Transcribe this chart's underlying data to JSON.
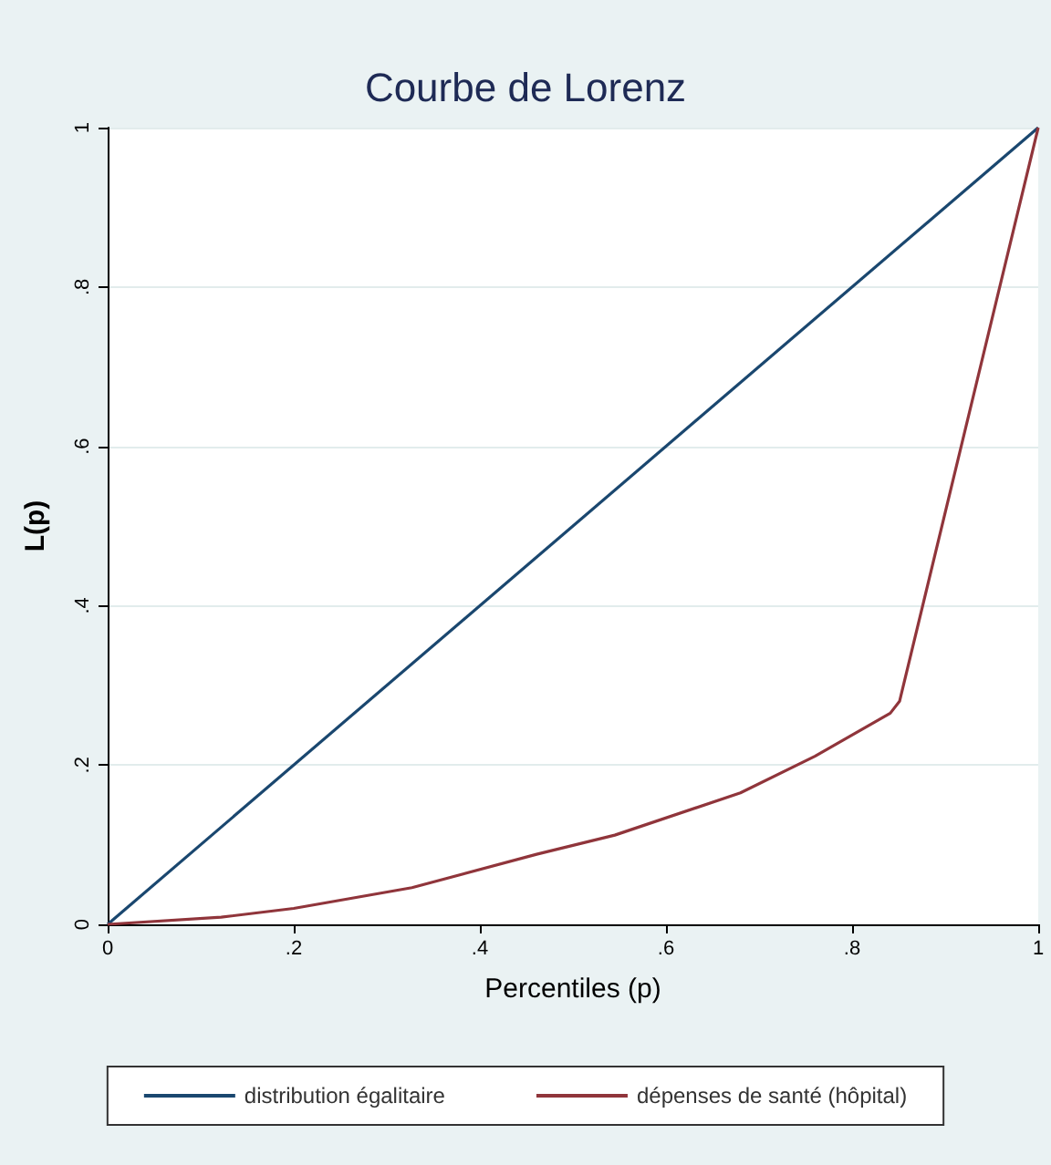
{
  "chart_data": {
    "type": "line",
    "title": "Courbe de Lorenz",
    "xlabel": "Percentiles (p)",
    "ylabel": "L(p)",
    "xlim": [
      0,
      1
    ],
    "ylim": [
      0,
      1
    ],
    "xticks": [
      0,
      {
        "value": 0.2,
        "label": ".2"
      },
      {
        "value": 0.4,
        "label": ".4"
      },
      {
        "value": 0.6,
        "label": ".6"
      },
      {
        "value": 0.8,
        "label": ".8"
      },
      1
    ],
    "yticks": [
      0,
      {
        "value": 0.2,
        "label": ".2"
      },
      {
        "value": 0.4,
        "label": ".4"
      },
      {
        "value": 0.6,
        "label": ".6"
      },
      {
        "value": 0.8,
        "label": ".8"
      },
      1
    ],
    "grid": "y",
    "legend": "bottom",
    "marker": "none",
    "line_style": "solid",
    "series": [
      {
        "name": "distribution égalitaire",
        "color": "#1a476f",
        "x": [
          0,
          1
        ],
        "values": [
          0,
          1
        ]
      },
      {
        "name": "dépenses de santé (hôpital)",
        "color": "#90353b",
        "x": [
          0,
          0.122,
          0.2,
          0.327,
          0.461,
          0.545,
          0.68,
          0.76,
          0.841,
          0.851,
          1
        ],
        "values": [
          0,
          0.009,
          0.02,
          0.046,
          0.088,
          0.112,
          0.165,
          0.211,
          0.265,
          0.28,
          1
        ]
      }
    ]
  }
}
